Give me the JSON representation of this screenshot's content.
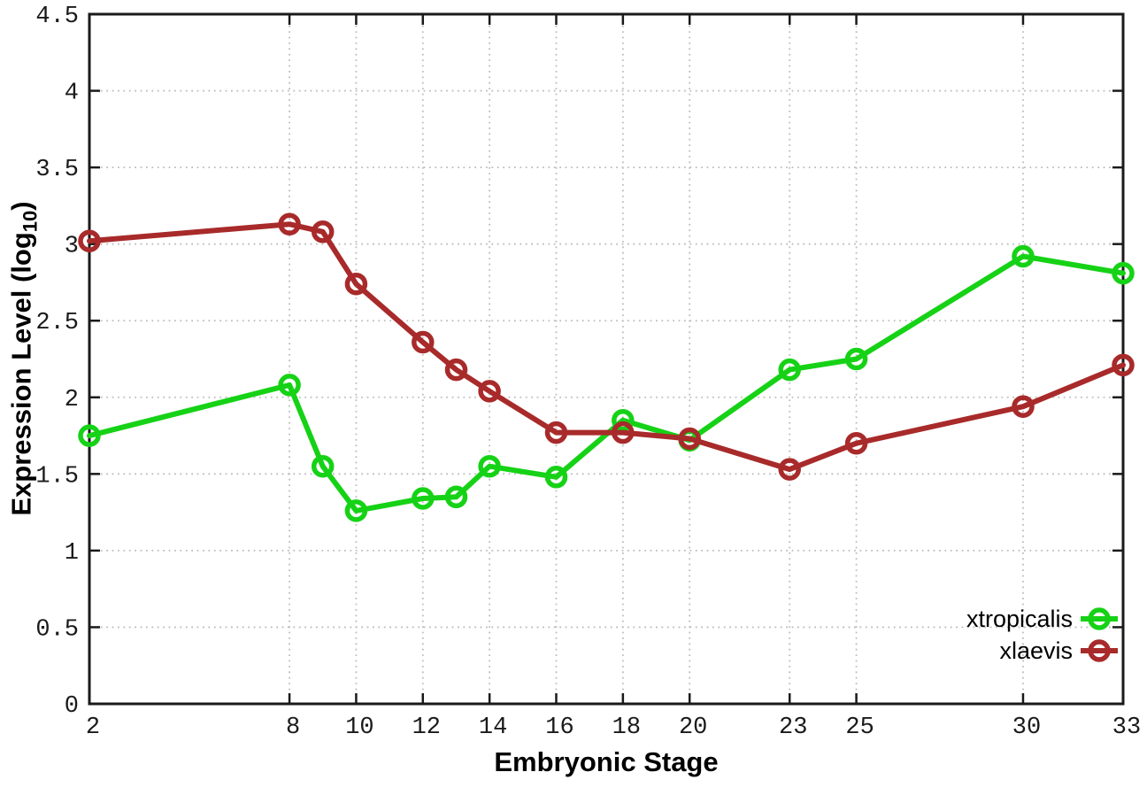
{
  "chart_data": {
    "type": "line",
    "title": "",
    "xlabel": "Embryonic Stage",
    "ylabel": "Expression Level (log10)",
    "ylabel_base": "Expression Level (log",
    "ylabel_sub": "10",
    "ylabel_close": ")",
    "x": [
      2,
      8,
      9,
      10,
      12,
      13,
      14,
      16,
      18,
      20,
      23,
      25,
      30,
      33
    ],
    "series": [
      {
        "name": "xtropicalis",
        "color": "#16d216",
        "values": [
          1.75,
          2.08,
          1.55,
          1.26,
          1.34,
          1.35,
          1.55,
          1.48,
          1.85,
          1.72,
          2.18,
          2.25,
          2.92,
          2.81
        ]
      },
      {
        "name": "xlaevis",
        "color": "#a82a2a",
        "values": [
          3.02,
          3.13,
          3.08,
          2.74,
          2.36,
          2.18,
          2.04,
          1.77,
          1.77,
          1.73,
          1.53,
          1.7,
          1.94,
          2.21
        ]
      }
    ],
    "xticks": [
      2,
      8,
      10,
      12,
      14,
      16,
      18,
      20,
      23,
      25,
      30,
      33
    ],
    "yticks": [
      0,
      0.5,
      1,
      1.5,
      2,
      2.5,
      3,
      3.5,
      4,
      4.5
    ],
    "xlim": [
      2,
      33
    ],
    "ylim": [
      0,
      4.5
    ],
    "grid": true,
    "legend_position": "bottom-right",
    "colors": {
      "border": "#1a1a1a",
      "grid": "#bdbdbd",
      "tick_text": "#1a1a1a",
      "background": "#ffffff"
    }
  }
}
